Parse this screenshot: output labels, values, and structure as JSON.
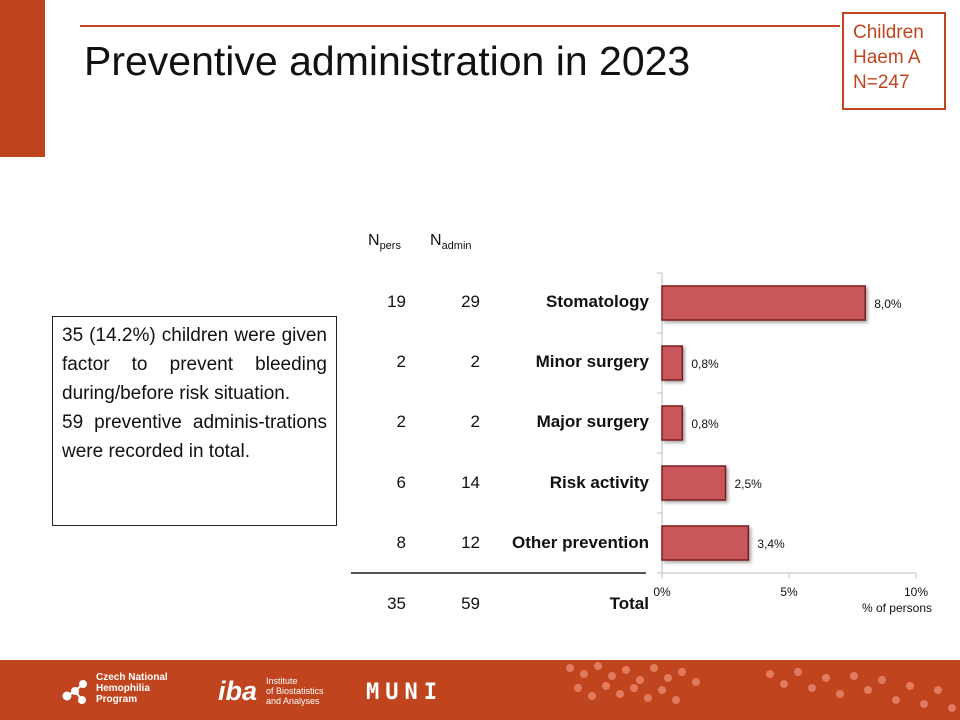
{
  "title": "Preventive administration in 2023",
  "badge": {
    "line1": "Children",
    "line2": "Haem A",
    "line3": "N=247"
  },
  "textbox": {
    "para1": "35 (14.2%) children were given factor to prevent bleeding during/before risk situation.",
    "para2": "59 preventive adminis-trations were recorded in total."
  },
  "table_headers": {
    "npers_main": "N",
    "npers_sub": "pers",
    "nadmin_main": "N",
    "nadmin_sub": "admin"
  },
  "rows": [
    {
      "label": "Stomatology",
      "npers": "19",
      "nadmin": "29"
    },
    {
      "label": "Minor surgery",
      "npers": "2",
      "nadmin": "2"
    },
    {
      "label": "Major surgery",
      "npers": "2",
      "nadmin": "2"
    },
    {
      "label": "Risk activity",
      "npers": "6",
      "nadmin": "14"
    },
    {
      "label": "Other prevention",
      "npers": "8",
      "nadmin": "12"
    }
  ],
  "total": {
    "label": "Total",
    "npers": "35",
    "nadmin": "59"
  },
  "chart_data": {
    "type": "bar",
    "orientation": "horizontal",
    "categories": [
      "Stomatology",
      "Minor surgery",
      "Major surgery",
      "Risk activity",
      "Other prevention"
    ],
    "values": [
      8.0,
      0.8,
      0.8,
      2.5,
      3.4
    ],
    "data_labels": [
      "8,0%",
      "0,8%",
      "0,8%",
      "2,5%",
      "3,4%"
    ],
    "xlim": [
      0,
      10
    ],
    "xticks": [
      0,
      5,
      10
    ],
    "xtick_labels": [
      "0%",
      "5%",
      "10%"
    ],
    "xlabel": "% of persons",
    "bar_color": "#c9565a",
    "bar_border": "#7a1f1f"
  },
  "footer": {
    "logo1_lines": [
      "Czech National",
      "Hemophilia",
      "Program"
    ],
    "logo2_big": "iba",
    "logo2_small": [
      "Institute",
      "of Biostatistics",
      "and Analyses"
    ],
    "logo3": "MUNI"
  },
  "colors": {
    "accent": "#c0451f"
  }
}
